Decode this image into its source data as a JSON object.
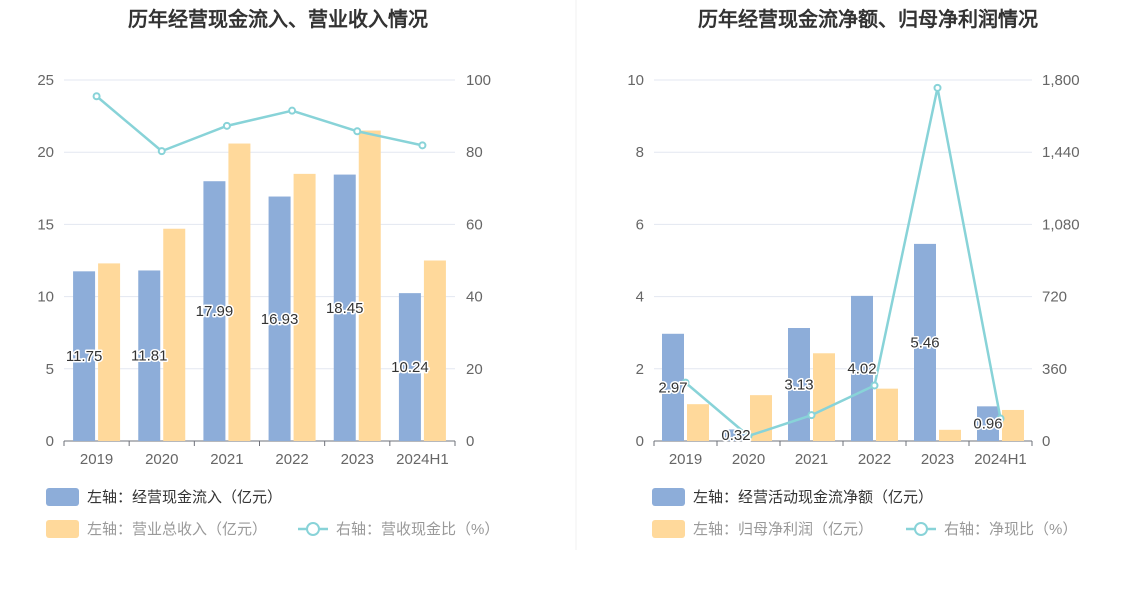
{
  "chart_data": [
    {
      "type": "bar",
      "title": "历年经营现金流入、营业收入情况",
      "categories": [
        "2019",
        "2020",
        "2021",
        "2022",
        "2023",
        "2024H1"
      ],
      "left_axis": {
        "ylim": [
          0,
          25
        ],
        "ticks": [
          "0",
          "5",
          "10",
          "15",
          "20",
          "25"
        ]
      },
      "right_axis": {
        "ylim": [
          0,
          100
        ],
        "ticks": [
          "0",
          "20",
          "40",
          "60",
          "80",
          "100"
        ]
      },
      "grid": true,
      "legend_position": "bottom",
      "series": [
        {
          "name": "左轴：经营现金流入（亿元）",
          "type": "bar",
          "axis": "left",
          "color": "#8dadd9",
          "values": [
            11.75,
            11.81,
            17.99,
            16.93,
            18.45,
            10.24
          ],
          "labels": [
            "11.75",
            "11.81",
            "17.99",
            "16.93",
            "18.45",
            "10.24"
          ]
        },
        {
          "name": "左轴：营业总收入（亿元）",
          "type": "bar",
          "axis": "left",
          "color": "#ffd99b",
          "values": [
            12.3,
            14.7,
            20.6,
            18.5,
            21.5,
            12.5
          ]
        },
        {
          "name": "右轴：营收现金比（%）",
          "type": "line",
          "axis": "right",
          "color": "#88d3d8",
          "values": [
            95.5,
            80.3,
            87.3,
            91.5,
            85.8,
            81.9
          ]
        }
      ]
    },
    {
      "type": "bar",
      "title": "历年经营现金流净额、归母净利润情况",
      "categories": [
        "2019",
        "2020",
        "2021",
        "2022",
        "2023",
        "2024H1"
      ],
      "left_axis": {
        "ylim": [
          0,
          10
        ],
        "ticks": [
          "0",
          "2",
          "4",
          "6",
          "8",
          "10"
        ]
      },
      "right_axis": {
        "ylim": [
          0,
          1800
        ],
        "ticks": [
          "0",
          "360",
          "720",
          "1,080",
          "1,440",
          "1,800"
        ]
      },
      "grid": true,
      "legend_position": "bottom",
      "series": [
        {
          "name": "左轴：经营活动现金流净额（亿元）",
          "type": "bar",
          "axis": "left",
          "color": "#8dadd9",
          "values": [
            2.97,
            0.32,
            3.13,
            4.02,
            5.46,
            0.96
          ],
          "labels": [
            "2.97",
            "0.32",
            "3.13",
            "4.02",
            "5.46",
            "0.96"
          ]
        },
        {
          "name": "左轴：归母净利润（亿元）",
          "type": "bar",
          "axis": "left",
          "color": "#ffd99b",
          "values": [
            1.02,
            1.27,
            2.43,
            1.45,
            0.31,
            0.86
          ]
        },
        {
          "name": "右轴：净现比（%）",
          "type": "line",
          "axis": "right",
          "color": "#88d3d8",
          "values": [
            291,
            25,
            129,
            277,
            1761,
            112
          ]
        }
      ]
    }
  ]
}
